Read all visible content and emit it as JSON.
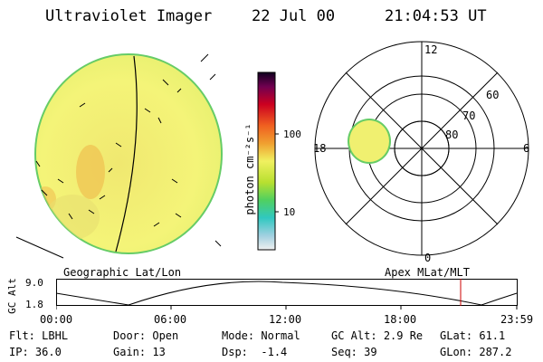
{
  "header": {
    "title": "Ultraviolet Imager",
    "date": "22 Jul 00",
    "time": "21:04:53 UT"
  },
  "colorbar": {
    "label": "photon cm⁻²s⁻¹",
    "ticks": [
      "100",
      "10"
    ]
  },
  "polar": {
    "clock_labels": [
      "12",
      "18",
      "6",
      "0"
    ],
    "lat_labels": [
      "60",
      "70",
      "80"
    ]
  },
  "panel_labels": {
    "left": "Geographic Lat/Lon",
    "right": "Apex MLat/MLT"
  },
  "altitude": {
    "axis_label": "GC Alt",
    "y_ticks": [
      "9.0",
      "1.8"
    ],
    "x_ticks": [
      "00:00",
      "06:00",
      "12:00",
      "18:00",
      "23:59"
    ]
  },
  "info": [
    [
      {
        "key": "Flt:",
        "value": "LBHL"
      },
      {
        "key": "Door:",
        "value": "Open"
      },
      {
        "key": "Mode:",
        "value": "Normal"
      },
      {
        "key": "GC Alt:",
        "value": "2.9 Re"
      },
      {
        "key": "GLat:",
        "value": "61.1"
      }
    ],
    [
      {
        "key": "IP:",
        "value": "36.0"
      },
      {
        "key": "Gain:",
        "value": "13"
      },
      {
        "key": "Dsp:",
        "value": " -1.4"
      },
      {
        "key": "Seq:",
        "value": "39"
      },
      {
        "key": "GLon:",
        "value": "287.2"
      }
    ]
  ],
  "colors": {
    "disk_fill": "#f0f070",
    "disk_edge": "#60c860",
    "polar_patch": "#f0f070",
    "marker": "#cc0000"
  }
}
